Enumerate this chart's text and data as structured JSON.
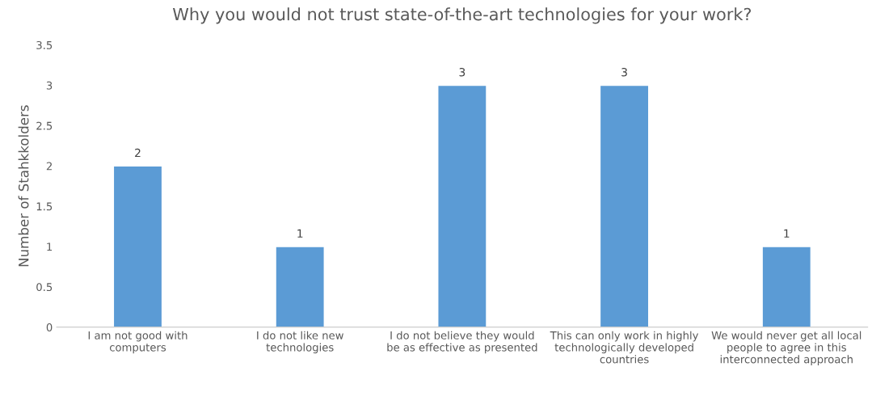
{
  "chart_data": {
    "type": "bar",
    "title": "Why you would not trust state-of-the-art technologies for your work?",
    "ylabel": "Number of Stahkkolders",
    "categories": [
      "I am not good with\ncomputers",
      "I do not like new\ntechnologies",
      "I do not believe they would\nbe as effective as presented",
      "This can only work in highly\ntechnologically developed\ncountries",
      "We would never get all local\npeople to agree in this\ninterconnected approach"
    ],
    "values": [
      2,
      1,
      3,
      3,
      1
    ],
    "color": "#5b9bd5",
    "ylim": [
      0,
      3.5
    ],
    "yticks": [
      0,
      0.5,
      1,
      1.5,
      2,
      2.5,
      3,
      3.5
    ],
    "data_labels": true,
    "grid": false
  }
}
